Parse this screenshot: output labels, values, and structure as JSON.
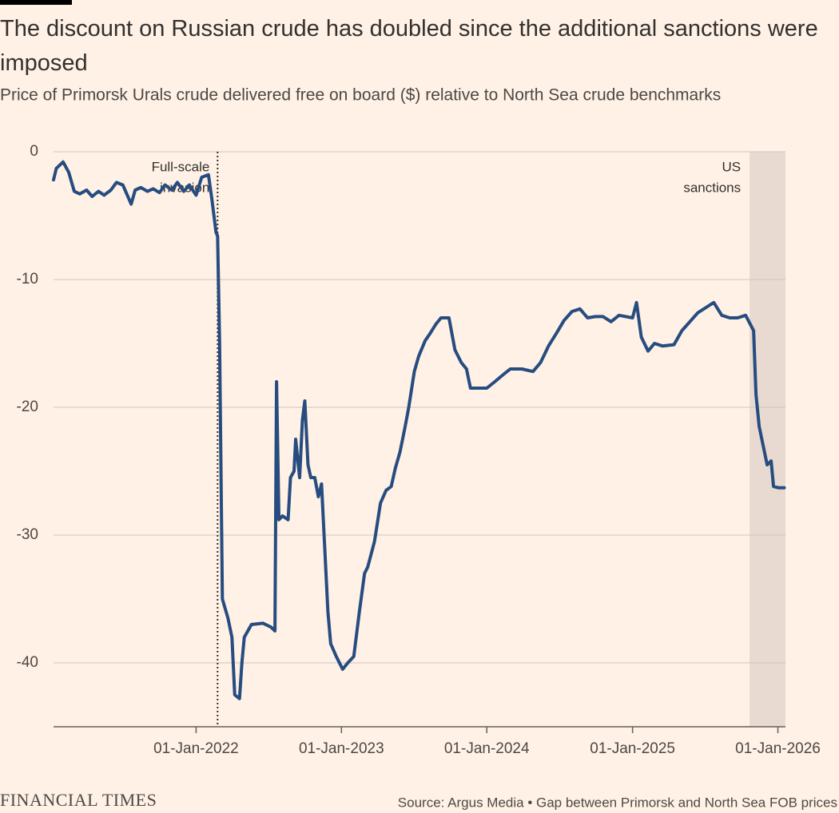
{
  "chart_data": {
    "type": "line",
    "title": "The discount on Russian crude has doubled since the additional sanctions were imposed",
    "subtitle": "Price of Primorsk Urals crude delivered free on board ($) relative to North Sea crude benchmarks",
    "source": "Source: Argus Media • Gap between Primorsk and North Sea FOB prices",
    "brand": "FINANCIAL TIMES",
    "color": "#264c80",
    "grid": true,
    "xlim": [
      "2021-01-08",
      "2026-01-20"
    ],
    "ylim": [
      -45,
      0
    ],
    "yticks": [
      0,
      -10,
      -20,
      -30,
      -40
    ],
    "xticks": [
      {
        "value": "2022-01-01",
        "label": "01-Jan-2022"
      },
      {
        "value": "2023-01-01",
        "label": "01-Jan-2023"
      },
      {
        "value": "2024-01-01",
        "label": "01-Jan-2024"
      },
      {
        "value": "2025-01-01",
        "label": "01-Jan-2025"
      },
      {
        "value": "2026-01-01",
        "label": "01-Jan-2026"
      }
    ],
    "annotations": [
      {
        "lines": [
          "Full-scale",
          "invasion"
        ],
        "date": "2022-02-24",
        "style": "dotted-line"
      },
      {
        "lines": [
          "US",
          "sanctions"
        ],
        "date": "2025-10-22",
        "style": "shade"
      }
    ],
    "x": [
      "2021-01-08",
      "2021-01-15",
      "2021-02-01",
      "2021-02-15",
      "2021-03-01",
      "2021-03-15",
      "2021-04-01",
      "2021-04-15",
      "2021-05-01",
      "2021-05-15",
      "2021-06-01",
      "2021-06-15",
      "2021-07-01",
      "2021-07-22",
      "2021-08-01",
      "2021-08-15",
      "2021-09-01",
      "2021-09-15",
      "2021-10-01",
      "2021-10-15",
      "2021-11-01",
      "2021-11-15",
      "2021-12-01",
      "2021-12-15",
      "2022-01-01",
      "2022-01-15",
      "2022-02-01",
      "2022-02-10",
      "2022-02-20",
      "2022-02-24",
      "2022-03-01",
      "2022-03-08",
      "2022-03-22",
      "2022-04-01",
      "2022-04-08",
      "2022-04-20",
      "2022-04-26",
      "2022-05-02",
      "2022-05-20",
      "2022-06-18",
      "2022-07-08",
      "2022-07-18",
      "2022-07-22",
      "2022-07-28",
      "2022-08-06",
      "2022-08-20",
      "2022-08-26",
      "2022-09-04",
      "2022-09-08",
      "2022-09-18",
      "2022-09-25",
      "2022-10-01",
      "2022-10-09",
      "2022-10-16",
      "2022-10-26",
      "2022-11-04",
      "2022-11-12",
      "2022-11-20",
      "2022-11-28",
      "2022-12-05",
      "2022-12-19",
      "2023-01-04",
      "2023-01-17",
      "2023-02-01",
      "2023-02-15",
      "2023-02-28",
      "2023-03-08",
      "2023-03-25",
      "2023-04-09",
      "2023-04-23",
      "2023-05-06",
      "2023-05-16",
      "2023-05-28",
      "2023-06-10",
      "2023-06-19",
      "2023-07-03",
      "2023-07-14",
      "2023-07-30",
      "2023-08-12",
      "2023-08-26",
      "2023-09-08",
      "2023-09-28",
      "2023-10-13",
      "2023-10-29",
      "2023-11-11",
      "2023-11-21",
      "2024-01-01",
      "2024-01-21",
      "2024-02-09",
      "2024-02-29",
      "2024-03-29",
      "2024-04-26",
      "2024-05-15",
      "2024-06-04",
      "2024-06-24",
      "2024-07-13",
      "2024-08-02",
      "2024-08-22",
      "2024-09-10",
      "2024-09-30",
      "2024-10-19",
      "2024-11-08",
      "2024-11-28",
      "2025-01-01",
      "2025-01-11",
      "2025-01-23",
      "2025-02-09",
      "2025-02-25",
      "2025-03-17",
      "2025-04-15",
      "2025-05-05",
      "2025-05-25",
      "2025-06-14",
      "2025-07-04",
      "2025-07-24",
      "2025-08-13",
      "2025-09-02",
      "2025-09-22",
      "2025-10-12",
      "2025-11-01",
      "2025-11-07",
      "2025-11-15",
      "2025-11-25",
      "2025-12-05",
      "2025-12-15",
      "2025-12-21",
      "2026-01-03",
      "2026-01-17"
    ],
    "values": [
      -2.2,
      -1.3,
      -0.8,
      -1.6,
      -3.1,
      -3.3,
      -3,
      -3.5,
      -3.1,
      -3.4,
      -3,
      -2.4,
      -2.6,
      -4.1,
      -3,
      -2.8,
      -3.1,
      -2.9,
      -3.2,
      -2.6,
      -3,
      -2.4,
      -3.1,
      -2.6,
      -3.4,
      -2,
      -1.8,
      -3.8,
      -6.3,
      -6.6,
      -15,
      -35,
      -36.5,
      -38,
      -42.5,
      -42.8,
      -40,
      -38,
      -37,
      -36.9,
      -37.2,
      -37.5,
      -18,
      -28.8,
      -28.5,
      -28.8,
      -25.5,
      -25,
      -22.5,
      -25.5,
      -21,
      -19.5,
      -24.5,
      -25.5,
      -25.5,
      -27,
      -26,
      -31,
      -36,
      -38.5,
      -39.5,
      -40.5,
      -40,
      -39.5,
      -36,
      -33,
      -32.5,
      -30.5,
      -27.5,
      -26.5,
      -26.2,
      -24.8,
      -23.5,
      -21.5,
      -20,
      -17.2,
      -16,
      -14.8,
      -14.2,
      -13.5,
      -13,
      -13,
      -15.5,
      -16.5,
      -17,
      -18.5,
      -18.5,
      -18,
      -17.5,
      -17,
      -17,
      -17.2,
      -16.5,
      -15.2,
      -14.2,
      -13.2,
      -12.5,
      -12.3,
      -13,
      -12.9,
      -12.9,
      -13.3,
      -12.8,
      -13,
      -11.8,
      -14.5,
      -15.6,
      -15,
      -15.2,
      -15.1,
      -14,
      -13.3,
      -12.6,
      -12.2,
      -11.8,
      -12.8,
      -13,
      -13,
      -12.8,
      -14,
      -19,
      -21.5,
      -23,
      -24.5,
      -24.2,
      -26.2,
      -26.3,
      -26.3
    ]
  }
}
